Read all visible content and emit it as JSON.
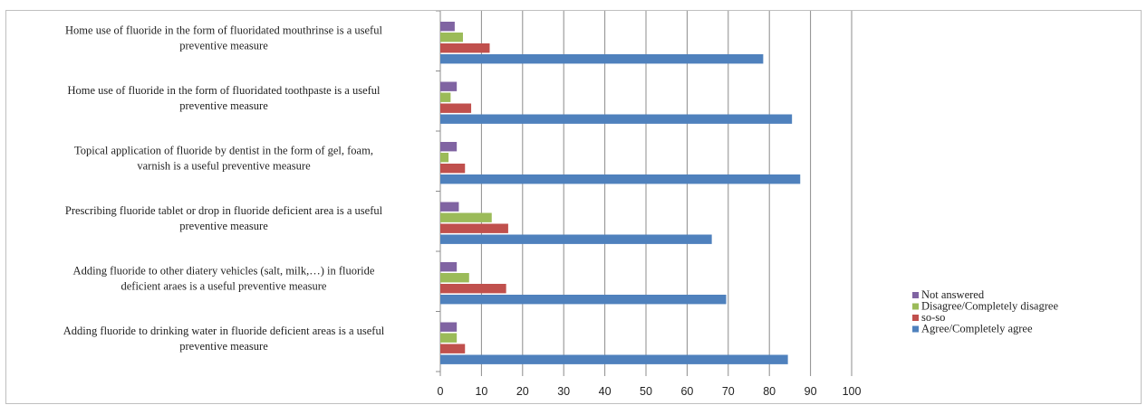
{
  "chart_data": {
    "type": "bar",
    "orientation": "horizontal",
    "title": "",
    "xlabel": "",
    "ylabel": "",
    "xlim": [
      0,
      100
    ],
    "x_ticks": [
      0,
      10,
      20,
      30,
      40,
      50,
      60,
      70,
      80,
      90,
      100
    ],
    "grid": "vertical",
    "legend_position": "right",
    "categories": [
      [
        "Home use of fluoride in the form of fluoridated mouthrinse is a useful",
        "preventive measure"
      ],
      [
        "Home use of fluoride in the form of fluoridated toothpaste is a useful",
        "preventive measure"
      ],
      [
        "Topical application of fluoride by dentist in the form of gel, foam,",
        "varnish is a useful preventive measure"
      ],
      [
        "Prescribing fluoride tablet or drop in fluoride deficient area is a useful",
        "preventive measure"
      ],
      [
        "Adding fluoride to other diatery vehicles (salt, milk,…) in fluoride",
        "deficient araes is a useful preventive measure"
      ],
      [
        "Adding fluoride to drinking water in fluoride deficient areas is a useful",
        "preventive measure"
      ]
    ],
    "series": [
      {
        "name": "Not answered",
        "color": "#8064A2",
        "values": [
          3.5,
          4,
          4,
          4.5,
          4,
          4
        ]
      },
      {
        "name": "Disagree/Completely disagree",
        "color": "#9BBB59",
        "values": [
          5.5,
          2.5,
          2,
          12.5,
          7,
          4
        ]
      },
      {
        "name": "so-so",
        "color": "#C0504D",
        "values": [
          12,
          7.5,
          6,
          16.5,
          16,
          6
        ]
      },
      {
        "name": "Agree/Completely agree",
        "color": "#4F81BD",
        "values": [
          78.5,
          85.5,
          87.5,
          66,
          69.5,
          84.5
        ]
      }
    ]
  }
}
